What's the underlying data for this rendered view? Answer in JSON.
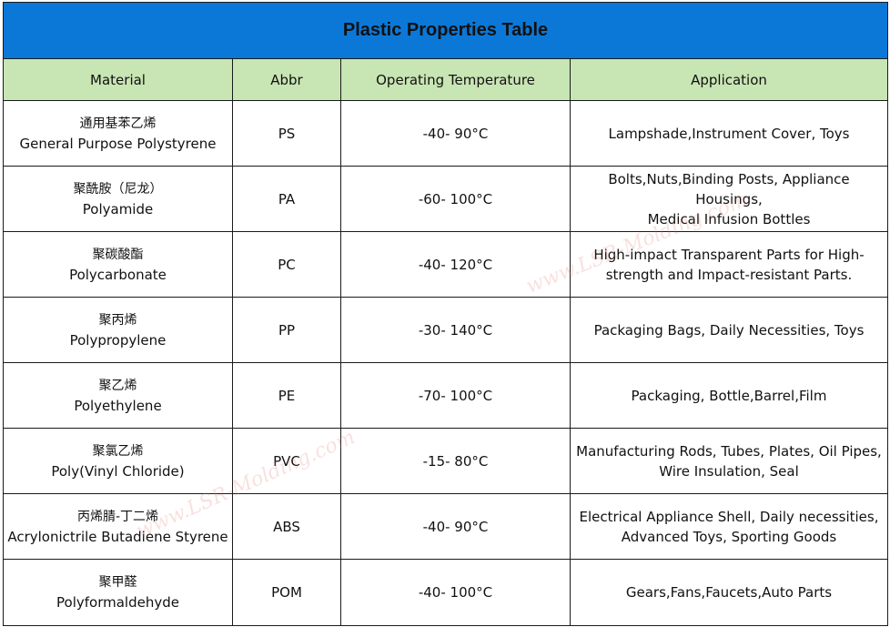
{
  "title": "Plastic Properties Table",
  "columns": [
    "Material",
    "Abbr",
    "Operating Temperature",
    "Application"
  ],
  "rows": [
    {
      "cn": "通用基苯乙烯",
      "en": "General Purpose Polystyrene",
      "abbr": "PS",
      "temp": "-40- 90°C",
      "app": [
        "Lampshade,Instrument Cover, Toys"
      ]
    },
    {
      "cn": "聚酰胺（尼龙）",
      "en": "Polyamide",
      "abbr": "PA",
      "temp": "-60- 100°C",
      "app": [
        "Bolts,Nuts,Binding Posts, Appliance Housings,",
        "Medical Infusion Bottles"
      ]
    },
    {
      "cn": "聚碳酸酯",
      "en": "Polycarbonate",
      "abbr": "PC",
      "temp": "-40- 120°C",
      "app": [
        "High-impact Transparent Parts for High-",
        "strength and Impact-resistant Parts."
      ]
    },
    {
      "cn": "聚丙烯",
      "en": "Polypropylene",
      "abbr": "PP",
      "temp": "-30- 140°C",
      "app": [
        "Packaging Bags, Daily Necessities, Toys"
      ]
    },
    {
      "cn": "聚乙烯",
      "en": "Polyethylene",
      "abbr": "PE",
      "temp": "-70- 100°C",
      "app": [
        "Packaging, Bottle,Barrel,Film"
      ]
    },
    {
      "cn": "聚氯乙烯",
      "en": "Poly(Vinyl Chloride)",
      "abbr": "PVC",
      "temp": "-15- 80°C",
      "app": [
        "Manufacturing Rods, Tubes, Plates, Oil Pipes,",
        "Wire Insulation, Seal"
      ]
    },
    {
      "cn": "丙烯腈-丁二烯",
      "en": "Acrylonictrile Butadiene Styrene",
      "abbr": "ABS",
      "temp": "-40- 90°C",
      "app": [
        "Electrical Appliance Shell, Daily necessities,",
        "Advanced Toys, Sporting Goods"
      ]
    },
    {
      "cn": "聚甲醛",
      "en": "Polyformaldehyde",
      "abbr": "POM",
      "temp": "-40- 100°C",
      "app": [
        "Gears,Fans,Faucets,Auto Parts"
      ]
    }
  ],
  "watermark": "www.LSR-Molding.com"
}
